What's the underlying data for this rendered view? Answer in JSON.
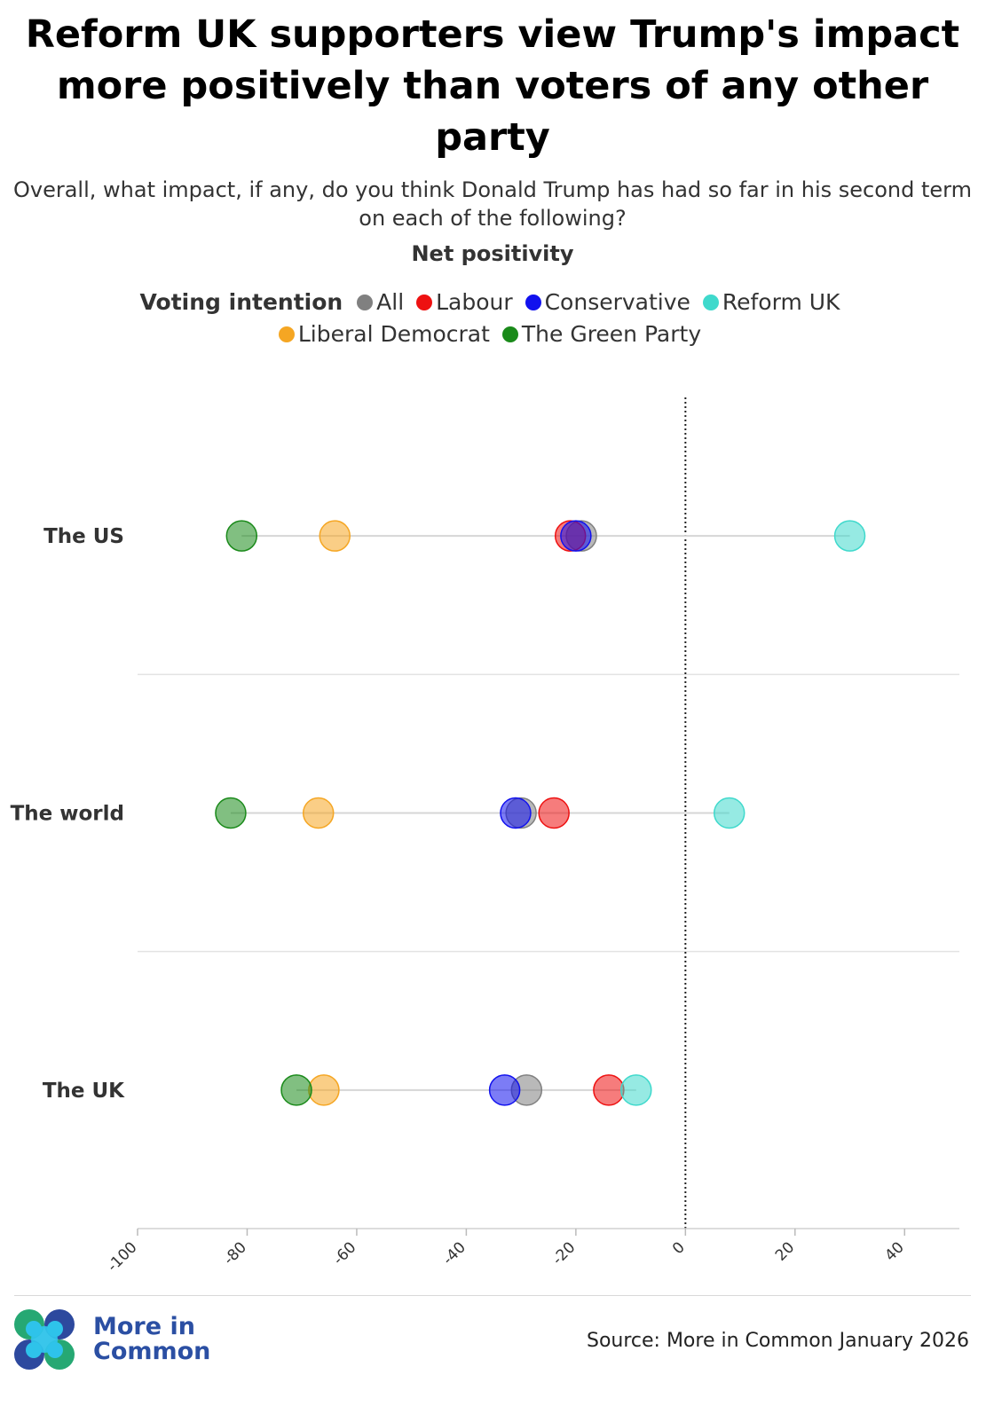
{
  "header": {
    "title": "Reform UK supporters view Trump's impact more positively than voters of any other party",
    "subtitle": "Overall, what impact, if any, do you think Donald Trump has had so far in his second term on each of the following?",
    "measure_label": "Net positivity"
  },
  "legend": {
    "title": "Voting intention",
    "items": [
      {
        "label": "All",
        "color": "#808080"
      },
      {
        "label": "Labour",
        "color": "#ee1111"
      },
      {
        "label": "Conservative",
        "color": "#1111ee"
      },
      {
        "label": "Reform UK",
        "color": "#3fd9cc"
      },
      {
        "label": "Liberal Democrat",
        "color": "#f5a623"
      },
      {
        "label": "The Green Party",
        "color": "#1a8a1a"
      }
    ]
  },
  "chart_data": {
    "type": "scatter",
    "subtype": "dot-plot",
    "categories": [
      "The US",
      "The world",
      "The UK"
    ],
    "xlim": [
      -100,
      50
    ],
    "x_ticks": [
      -100,
      -80,
      -60,
      -40,
      -20,
      0,
      20,
      40
    ],
    "reference_line": 0,
    "grid": false,
    "legend_position": "top",
    "series": [
      {
        "name": "All",
        "color": "#808080",
        "values": [
          -19,
          -30,
          -29
        ]
      },
      {
        "name": "Labour",
        "color": "#ee1111",
        "values": [
          -21,
          -24,
          -14
        ]
      },
      {
        "name": "Conservative",
        "color": "#1111ee",
        "values": [
          -20,
          -31,
          -33
        ]
      },
      {
        "name": "Reform UK",
        "color": "#3fd9cc",
        "values": [
          30,
          8,
          -9
        ]
      },
      {
        "name": "Liberal Democrat",
        "color": "#f5a623",
        "values": [
          -64,
          -67,
          -66
        ]
      },
      {
        "name": "The Green Party",
        "color": "#1a8a1a",
        "values": [
          -81,
          -83,
          -71
        ]
      }
    ]
  },
  "footer": {
    "brand_line1": "More in",
    "brand_line2": "Common",
    "source": "Source: More in Common January 2026"
  }
}
